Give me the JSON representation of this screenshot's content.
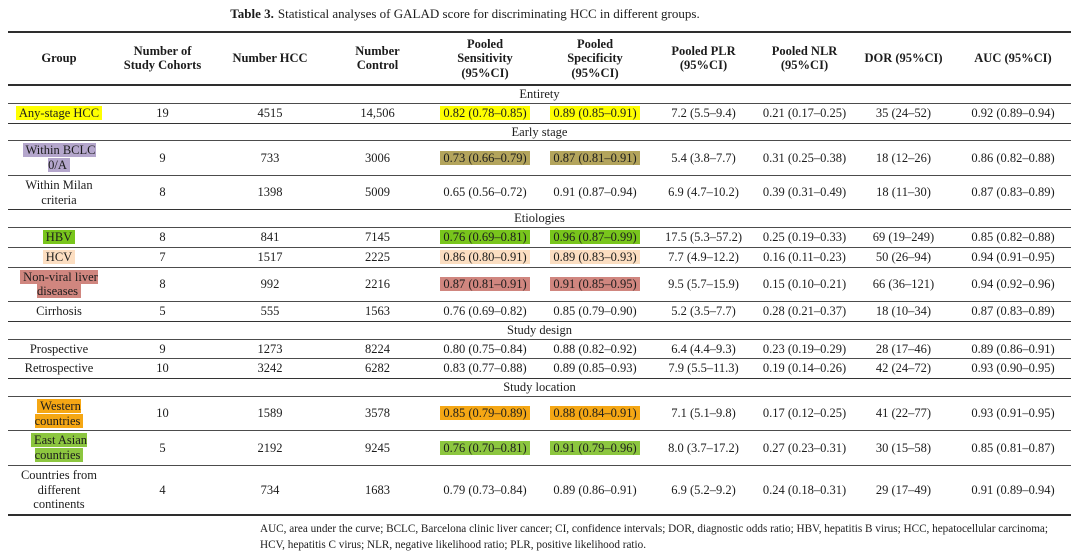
{
  "title": {
    "label": "Table 3.",
    "text": "Statistical analyses of GALAD score for discriminating HCC in different groups."
  },
  "columns": [
    "Group",
    "Number of\nStudy Cohorts",
    "Number HCC",
    "Number\nControl",
    "Pooled\nSensitivity\n(95%CI)",
    "Pooled\nSpecificity\n(95%CI)",
    "Pooled PLR\n(95%CI)",
    "Pooled NLR\n(95%CI)",
    "DOR (95%CI)",
    "AUC (95%CI)"
  ],
  "highlight_colors": {
    "yellow": "#feff00",
    "purple": "#b4a6cc",
    "khaki": "#b3a45c",
    "green": "#78c51c",
    "peach": "#fcdec1",
    "rose": "#d0867f",
    "amber": "#f5a714",
    "lightgreen": "#8cc63f"
  },
  "sections": [
    {
      "label": "Entirety",
      "rows": [
        {
          "group": "Any-stage HCC",
          "group_hl": "yellow",
          "cohorts": "19",
          "hcc": "4515",
          "control": "14,506",
          "sens": "0.82 (0.78–0.85)",
          "sens_hl": "yellow",
          "spec": "0.89 (0.85–0.91)",
          "spec_hl": "yellow",
          "plr": "7.2 (5.5–9.4)",
          "nlr": "0.21 (0.17–0.25)",
          "dor": "35 (24–52)",
          "auc": "0.92 (0.89–0.94)"
        }
      ]
    },
    {
      "label": "Early stage",
      "rows": [
        {
          "group": "Within BCLC\n0/A",
          "group_hl": "purple",
          "cohorts": "9",
          "hcc": "733",
          "control": "3006",
          "sens": "0.73 (0.66–0.79)",
          "sens_hl": "khaki",
          "spec": "0.87 (0.81–0.91)",
          "spec_hl": "khaki",
          "plr": "5.4 (3.8–7.7)",
          "nlr": "0.31 (0.25–0.38)",
          "dor": "18 (12–26)",
          "auc": "0.86 (0.82–0.88)"
        },
        {
          "group": "Within Milan\ncriteria",
          "cohorts": "8",
          "hcc": "1398",
          "control": "5009",
          "sens": "0.65 (0.56–0.72)",
          "spec": "0.91 (0.87–0.94)",
          "plr": "6.9 (4.7–10.2)",
          "nlr": "0.39 (0.31–0.49)",
          "dor": "18 (11–30)",
          "auc": "0.87 (0.83–0.89)"
        }
      ]
    },
    {
      "label": "Etiologies",
      "rows": [
        {
          "group": "HBV",
          "group_hl": "green",
          "cohorts": "8",
          "hcc": "841",
          "control": "7145",
          "sens": "0.76 (0.69–0.81)",
          "sens_hl": "green",
          "spec": "0.96 (0.87–0.99)",
          "spec_hl": "green",
          "plr": "17.5 (5.3–57.2)",
          "nlr": "0.25 (0.19–0.33)",
          "dor": "69 (19–249)",
          "auc": "0.85 (0.82–0.88)"
        },
        {
          "group": "HCV",
          "group_hl": "peach",
          "cohorts": "7",
          "hcc": "1517",
          "control": "2225",
          "sens": "0.86 (0.80–0.91)",
          "sens_hl": "peach",
          "spec": "0.89 (0.83–0.93)",
          "spec_hl": "peach",
          "plr": "7.7 (4.9–12.2)",
          "nlr": "0.16 (0.11–0.23)",
          "dor": "50 (26–94)",
          "auc": "0.94 (0.91–0.95)"
        },
        {
          "group": "Non-viral liver\ndiseases",
          "group_hl": "rose",
          "cohorts": "8",
          "hcc": "992",
          "control": "2216",
          "sens": "0.87 (0.81–0.91)",
          "sens_hl": "rose",
          "spec": "0.91 (0.85–0.95)",
          "spec_hl": "rose",
          "plr": "9.5 (5.7–15.9)",
          "nlr": "0.15 (0.10–0.21)",
          "dor": "66 (36–121)",
          "auc": "0.94 (0.92–0.96)"
        },
        {
          "group": "Cirrhosis",
          "cohorts": "5",
          "hcc": "555",
          "control": "1563",
          "sens": "0.76 (0.69–0.82)",
          "spec": "0.85 (0.79–0.90)",
          "plr": "5.2 (3.5–7.7)",
          "nlr": "0.28 (0.21–0.37)",
          "dor": "18 (10–34)",
          "auc": "0.87 (0.83–0.89)"
        }
      ]
    },
    {
      "label": "Study design",
      "rows": [
        {
          "group": "Prospective",
          "cohorts": "9",
          "hcc": "1273",
          "control": "8224",
          "sens": "0.80 (0.75–0.84)",
          "spec": "0.88 (0.82–0.92)",
          "plr": "6.4 (4.4–9.3)",
          "nlr": "0.23 (0.19–0.29)",
          "dor": "28 (17–46)",
          "auc": "0.89 (0.86–0.91)"
        },
        {
          "group": "Retrospective",
          "cohorts": "10",
          "hcc": "3242",
          "control": "6282",
          "sens": "0.83 (0.77–0.88)",
          "spec": "0.89 (0.85–0.93)",
          "plr": "7.9 (5.5–11.3)",
          "nlr": "0.19 (0.14–0.26)",
          "dor": "42 (24–72)",
          "auc": "0.93 (0.90–0.95)"
        }
      ]
    },
    {
      "label": "Study location",
      "rows": [
        {
          "group": "Western\ncountries",
          "group_hl": "amber",
          "cohorts": "10",
          "hcc": "1589",
          "control": "3578",
          "sens": "0.85 (0.79–0.89)",
          "sens_hl": "amber",
          "spec": "0.88 (0.84–0.91)",
          "spec_hl": "amber",
          "plr": "7.1 (5.1–9.8)",
          "nlr": "0.17 (0.12–0.25)",
          "dor": "41 (22–77)",
          "auc": "0.93 (0.91–0.95)"
        },
        {
          "group": "East Asian\ncountries",
          "group_hl": "lightgreen",
          "cohorts": "5",
          "hcc": "2192",
          "control": "9245",
          "sens": "0.76 (0.70–0.81)",
          "sens_hl": "lightgreen",
          "spec": "0.91 (0.79–0.96)",
          "spec_hl": "lightgreen",
          "plr": "8.0 (3.7–17.2)",
          "nlr": "0.27 (0.23–0.31)",
          "dor": "30 (15–58)",
          "auc": "0.85 (0.81–0.87)"
        },
        {
          "group": "Countries from\ndifferent\ncontinents",
          "cohorts": "4",
          "hcc": "734",
          "control": "1683",
          "sens": "0.79 (0.73–0.84)",
          "spec": "0.89 (0.86–0.91)",
          "plr": "6.9 (5.2–9.2)",
          "nlr": "0.24 (0.18–0.31)",
          "dor": "29 (17–49)",
          "auc": "0.91 (0.89–0.94)"
        }
      ]
    }
  ],
  "footnote": "AUC, area under the curve; BCLC, Barcelona clinic liver cancer; CI, confidence intervals; DOR, diagnostic odds ratio; HBV, hepatitis B virus; HCC, hepatocellular carcinoma; HCV, hepatitis C virus; NLR, negative likelihood ratio; PLR, positive likelihood ratio."
}
